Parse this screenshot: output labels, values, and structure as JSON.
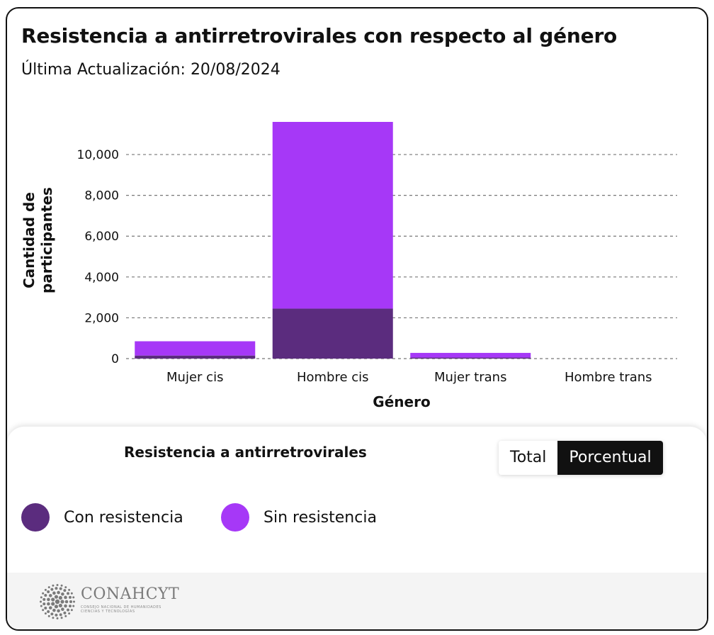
{
  "header": {
    "title": "Resistencia a antirretrovirales con respecto al género",
    "subtitle": "Última Actualización: 20/08/2024"
  },
  "chart_data": {
    "type": "bar",
    "stacked": true,
    "categories": [
      "Mujer cis",
      "Hombre cis",
      "Mujer trans",
      "Hombre trans"
    ],
    "series": [
      {
        "name": "Con resistencia",
        "values": [
          150,
          2450,
          50,
          0
        ],
        "color": "#5b2c7e"
      },
      {
        "name": "Sin resistencia",
        "values": [
          700,
          9150,
          230,
          0
        ],
        "color": "#a638f7"
      }
    ],
    "xlabel": "Género",
    "ylabel": "Cantidad de participantes",
    "ylim": [
      0,
      11600
    ],
    "yticks": [
      0,
      2000,
      4000,
      6000,
      8000,
      10000
    ],
    "ytick_labels": [
      "0",
      "2,000",
      "4,000",
      "6,000",
      "8,000",
      "10,000"
    ],
    "grid": "horizontal dashed",
    "legend_position": "bottom"
  },
  "legend": {
    "title": "Resistencia a antirretrovirales",
    "items": [
      {
        "label": "Con resistencia",
        "color": "#5b2c7e"
      },
      {
        "label": "Sin resistencia",
        "color": "#a638f7"
      }
    ]
  },
  "toggle": {
    "options": [
      "Total",
      "Porcentual"
    ],
    "selected": "Porcentual"
  },
  "footer": {
    "brand": "CONAHCYT",
    "brand_sub_line1": "CONSEJO NACIONAL DE HUMANIDADES",
    "brand_sub_line2": "CIENCIAS Y TECNOLOGÍAS",
    "logo_icon": "dotted-circle-logo"
  }
}
